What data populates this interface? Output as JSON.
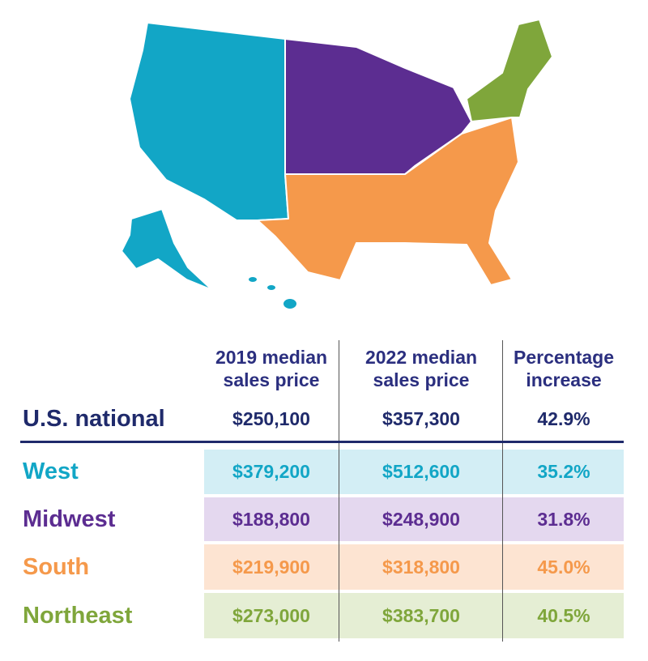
{
  "table": {
    "headers": [
      "2019 median sales price",
      "2022 median sales price",
      "Percentage increase"
    ],
    "rows": [
      [
        "U.S. national",
        "$250,100",
        "$357,300",
        "42.9%"
      ],
      [
        "West",
        "$379,200",
        "$512,600",
        "35.2%"
      ],
      [
        "Midwest",
        "$188,800",
        "$248,900",
        "31.8%"
      ],
      [
        "South",
        "$219,900",
        "$318,800",
        "45.0%"
      ],
      [
        "Northeast",
        "$273,000",
        "$383,700",
        "40.5%"
      ]
    ]
  }
}
